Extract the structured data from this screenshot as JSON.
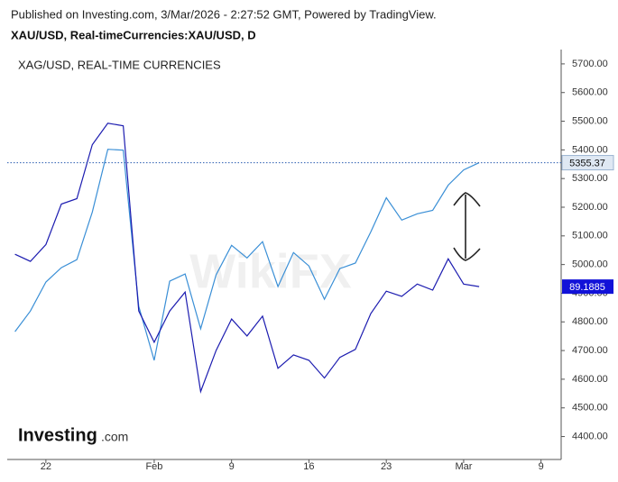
{
  "header": {
    "published": "Published on Investing.com, 3/Mar/2026 - 2:27:52 GMT, Powered by TradingView."
  },
  "logo": {
    "brand": "Investing",
    "suffix": ".com"
  },
  "watermark": "WikiFX",
  "chart_data": {
    "type": "line",
    "title": "XAU/USD, Real-timeCurrencies:XAU/USD, D",
    "categories": [
      null,
      null,
      "22",
      null,
      null,
      null,
      null,
      null,
      null,
      "Feb",
      null,
      null,
      null,
      null,
      "9",
      null,
      null,
      null,
      null,
      "16",
      null,
      null,
      null,
      null,
      "23",
      null,
      null,
      null,
      null,
      "Mar",
      null,
      null,
      null,
      null,
      "9",
      null
    ],
    "series": [
      {
        "color": "#3a8fd6",
        "values": [
          4766,
          4838,
          4939,
          4989,
          5017,
          5183,
          5402,
          5399,
          4854,
          4666,
          4942,
          4967,
          4776,
          4964,
          5067,
          5023,
          5080,
          4923,
          5042,
          4995,
          4879,
          4986,
          5005,
          5114,
          5233,
          5155,
          5177,
          5189,
          5277,
          5330,
          5355.37,
          null,
          null,
          null,
          null,
          null
        ],
        "value_labels": [
          null,
          null,
          null,
          null,
          null,
          null,
          null,
          null,
          null,
          null,
          null,
          null,
          null,
          null,
          null,
          null,
          null,
          null,
          null,
          null,
          null,
          null,
          null,
          null,
          null,
          null,
          null,
          null,
          null,
          null,
          "5355.37",
          null,
          null,
          null,
          null,
          null
        ]
      },
      {
        "name": "XAG/USD, REAL-TIME CURRENCIES",
        "color": "#1c1cb0",
        "price_label": "89.1885",
        "values": [
          5036,
          5011,
          5070,
          5211,
          5230,
          5418,
          5493,
          5484,
          4838,
          4729,
          4838,
          4904,
          4557,
          4700,
          4810,
          4751,
          4820,
          4638,
          4685,
          4666,
          4604,
          4676,
          4704,
          4829,
          4907,
          4889,
          4932,
          4911,
          5020,
          4932,
          4923,
          null,
          null,
          null,
          null,
          null
        ]
      }
    ],
    "ylim": [
      4320,
      5750
    ],
    "yticks": [
      {
        "value": 4400,
        "label": "4400.00"
      },
      {
        "value": 4500,
        "label": "4500.00"
      },
      {
        "value": 4600,
        "label": "4600.00"
      },
      {
        "value": 4700,
        "label": "4700.00"
      },
      {
        "value": 4800,
        "label": "4800.00"
      },
      {
        "value": 4900,
        "label": "4900.00"
      },
      {
        "value": 5000,
        "label": "5000.00"
      },
      {
        "value": 5100,
        "label": "5100.00"
      },
      {
        "value": 5200,
        "label": "5200.00"
      },
      {
        "value": 5300,
        "label": "5300.00"
      },
      {
        "value": 5400,
        "label": "5400.00"
      },
      {
        "value": 5500,
        "label": "5500.00"
      },
      {
        "value": 5600,
        "label": "5600.00"
      },
      {
        "value": 5700,
        "label": "5700.00"
      }
    ],
    "grid": false
  }
}
